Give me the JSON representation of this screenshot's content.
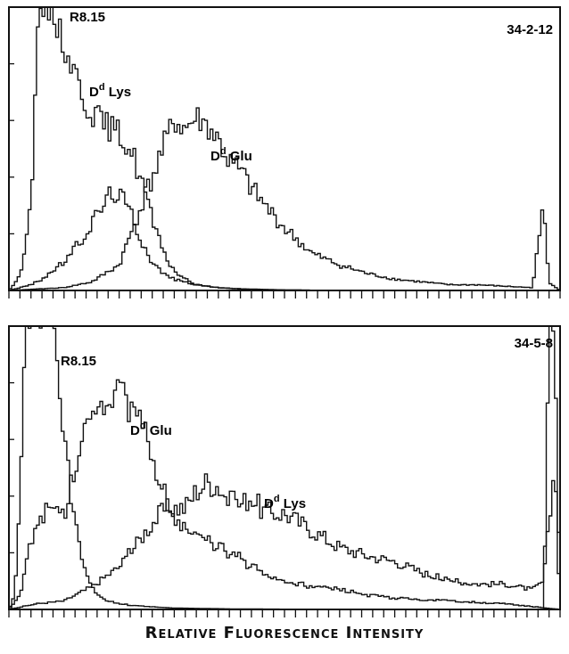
{
  "chart_data": [
    {
      "type": "line",
      "panel_label": "34-2-12",
      "xlabel": "Relative Fluorescence Intensity",
      "ylabel": "",
      "x_range": [
        0,
        100
      ],
      "y_range": [
        0,
        100
      ],
      "grid": false,
      "minor_ticks_x": 50,
      "minor_ticks_y": 5,
      "series": [
        {
          "name": "R8.15",
          "x": [
            0,
            2,
            4,
            5,
            6,
            7,
            8,
            9,
            10,
            12,
            14,
            16,
            18,
            20,
            22,
            24,
            26,
            28,
            30,
            32,
            34,
            36,
            38,
            40,
            42,
            45,
            50,
            55,
            60,
            70,
            80,
            90,
            100
          ],
          "y": [
            0,
            5,
            30,
            85,
            99,
            100,
            98,
            93,
            86,
            77,
            66,
            61,
            58,
            55,
            50,
            40,
            25,
            13,
            7,
            4,
            2,
            1.5,
            1,
            0.8,
            0.5,
            0.3,
            0.2,
            0.1,
            0.1,
            0,
            0,
            0,
            0
          ]
        },
        {
          "name": "D^d Lys",
          "x": [
            0,
            2,
            4,
            6,
            8,
            10,
            12,
            14,
            16,
            18,
            19,
            20,
            22,
            24,
            26,
            28,
            30,
            32,
            34,
            36,
            38,
            40,
            42,
            44,
            46,
            48,
            50,
            55,
            60,
            70,
            80,
            90,
            100
          ],
          "y": [
            0,
            1,
            2,
            4,
            7,
            10,
            15,
            20,
            27,
            33,
            35,
            34,
            28,
            18,
            10,
            6,
            4,
            3,
            2,
            1.5,
            1,
            0.8,
            0.6,
            0.5,
            0.4,
            0.3,
            0.2,
            0.1,
            0.1,
            0,
            0,
            0,
            0
          ]
        },
        {
          "name": "D^d Glu",
          "x": [
            0,
            5,
            10,
            15,
            20,
            25,
            28,
            30,
            32,
            34,
            36,
            38,
            40,
            42,
            44,
            46,
            50,
            55,
            60,
            65,
            70,
            75,
            80,
            85,
            90,
            95,
            97,
            98,
            100
          ],
          "y": [
            0,
            0.5,
            1,
            3,
            9,
            35,
            50,
            60,
            57,
            61,
            58,
            53,
            45,
            42,
            36,
            31,
            22,
            13,
            9,
            6,
            4,
            3,
            2,
            2,
            1.5,
            1,
            30,
            3,
            0
          ]
        }
      ],
      "annotations": [
        "R8.15",
        "D^d Lys",
        "D^d Glu",
        "34-2-12"
      ]
    },
    {
      "type": "line",
      "panel_label": "34-5-8",
      "xlabel": "Relative Fluorescence Intensity",
      "ylabel": "",
      "x_range": [
        0,
        100
      ],
      "y_range": [
        0,
        100
      ],
      "grid": false,
      "minor_ticks_x": 50,
      "minor_ticks_y": 5,
      "series": [
        {
          "name": "R8.15",
          "x": [
            0,
            1,
            2,
            3,
            4,
            5,
            6,
            7,
            8,
            9,
            10,
            11,
            12,
            13,
            14,
            15,
            16,
            18,
            20,
            22,
            25,
            30,
            40,
            50,
            60,
            70,
            80,
            90,
            97,
            98,
            99,
            100
          ],
          "y": [
            0,
            5,
            35,
            100,
            100,
            100,
            100,
            100,
            100,
            82,
            60,
            45,
            30,
            20,
            12,
            8,
            5,
            3,
            2,
            1.5,
            1,
            0.5,
            0.2,
            0.1,
            0.1,
            0,
            0,
            0,
            0,
            100,
            100,
            0
          ]
        },
        {
          "name": "D^d Glu",
          "x": [
            0,
            2,
            4,
            6,
            8,
            10,
            12,
            14,
            16,
            18,
            20,
            22,
            24,
            26,
            28,
            30,
            32,
            34,
            36,
            38,
            40,
            42,
            44,
            46,
            48,
            50,
            55,
            60,
            65,
            70,
            80,
            90,
            100
          ],
          "y": [
            0,
            5,
            25,
            33,
            35,
            33,
            50,
            65,
            75,
            72,
            80,
            70,
            65,
            55,
            42,
            33,
            28,
            25,
            24,
            22,
            20,
            18,
            15,
            13,
            11,
            10,
            8,
            7,
            5,
            4,
            3,
            2,
            0
          ]
        },
        {
          "name": "D^d Lys",
          "x": [
            0,
            5,
            10,
            15,
            20,
            22,
            25,
            28,
            30,
            32,
            34,
            36,
            38,
            40,
            42,
            44,
            46,
            48,
            50,
            55,
            60,
            65,
            70,
            75,
            80,
            85,
            90,
            95,
            97,
            98,
            99,
            100
          ],
          "y": [
            0,
            2,
            3,
            8,
            15,
            20,
            28,
            35,
            36,
            36,
            42,
            45,
            44,
            38,
            37,
            40,
            35,
            34,
            34,
            28,
            22,
            19,
            17,
            13,
            10,
            9,
            9,
            7,
            10,
            30,
            50,
            0
          ]
        }
      ],
      "annotations": [
        "R8.15",
        "D^d Glu",
        "D^d Lys",
        "34-5-8"
      ]
    }
  ],
  "labels": {
    "top_r815": "R8.15",
    "top_lys_base": "D",
    "top_lys_sup": "d",
    "top_lys_rest": " Lys",
    "top_glu_base": "D",
    "top_glu_sup": "d",
    "top_glu_rest": " Glu",
    "top_id": "34-2-12",
    "bot_r815": "R8.15",
    "bot_glu_base": "D",
    "bot_glu_sup": "d",
    "bot_glu_rest": " Glu",
    "bot_lys_base": "D",
    "bot_lys_sup": "d",
    "bot_lys_rest": " Lys",
    "bot_id": "34-5-8",
    "x_axis_title": "Relative Fluorescence Intensity"
  },
  "colors": {
    "line": "#111111",
    "background": "#ffffff"
  }
}
